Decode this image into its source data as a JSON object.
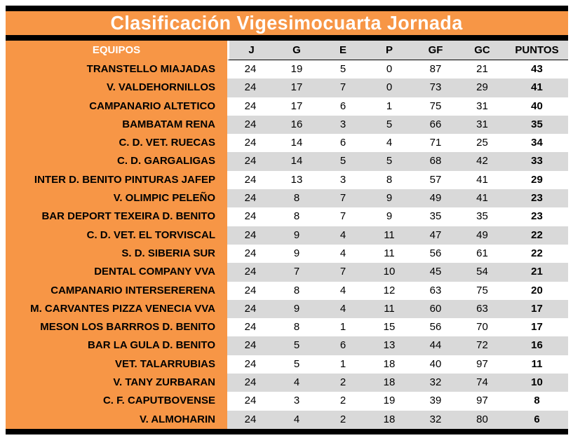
{
  "title": "Clasificación Vigesimocuarta Jornada",
  "table": {
    "team_header": "EQUIPOS",
    "columns": [
      "J",
      "G",
      "E",
      "P",
      "GF",
      "GC",
      "PUNTOS"
    ],
    "rows": [
      {
        "team": "TRANSTELLO MIAJADAS",
        "j": "24",
        "g": "19",
        "e": "5",
        "p": "0",
        "gf": "87",
        "gc": "21",
        "puntos": "43"
      },
      {
        "team": "V. VALDEHORNILLOS",
        "j": "24",
        "g": "17",
        "e": "7",
        "p": "0",
        "gf": "73",
        "gc": "29",
        "puntos": "41"
      },
      {
        "team": "CAMPANARIO ALTETICO",
        "j": "24",
        "g": "17",
        "e": "6",
        "p": "1",
        "gf": "75",
        "gc": "31",
        "puntos": "40"
      },
      {
        "team": "BAMBATAM RENA",
        "j": "24",
        "g": "16",
        "e": "3",
        "p": "5",
        "gf": "66",
        "gc": "31",
        "puntos": "35"
      },
      {
        "team": "C. D. VET. RUECAS",
        "j": "24",
        "g": "14",
        "e": "6",
        "p": "4",
        "gf": "71",
        "gc": "25",
        "puntos": "34"
      },
      {
        "team": "C. D. GARGALIGAS",
        "j": "24",
        "g": "14",
        "e": "5",
        "p": "5",
        "gf": "68",
        "gc": "42",
        "puntos": "33"
      },
      {
        "team": "INTER D. BENITO PINTURAS JAFEP",
        "j": "24",
        "g": "13",
        "e": "3",
        "p": "8",
        "gf": "57",
        "gc": "41",
        "puntos": "29"
      },
      {
        "team": "V. OLIMPIC PELEÑO",
        "j": "24",
        "g": "8",
        "e": "7",
        "p": "9",
        "gf": "49",
        "gc": "41",
        "puntos": "23"
      },
      {
        "team": "BAR DEPORT TEXEIRA D. BENITO",
        "j": "24",
        "g": "8",
        "e": "7",
        "p": "9",
        "gf": "35",
        "gc": "35",
        "puntos": "23"
      },
      {
        "team": "C. D. VET. EL TORVISCAL",
        "j": "24",
        "g": "9",
        "e": "4",
        "p": "11",
        "gf": "47",
        "gc": "49",
        "puntos": "22"
      },
      {
        "team": "S. D. SIBERIA SUR",
        "j": "24",
        "g": "9",
        "e": "4",
        "p": "11",
        "gf": "56",
        "gc": "61",
        "puntos": "22"
      },
      {
        "team": "DENTAL COMPANY VVA",
        "j": "24",
        "g": "7",
        "e": "7",
        "p": "10",
        "gf": "45",
        "gc": "54",
        "puntos": "21"
      },
      {
        "team": "CAMPANARIO INTERSERERENA",
        "j": "24",
        "g": "8",
        "e": "4",
        "p": "12",
        "gf": "63",
        "gc": "75",
        "puntos": "20"
      },
      {
        "team": "M. CARVANTES PIZZA VENECIA VVA",
        "j": "24",
        "g": "9",
        "e": "4",
        "p": "11",
        "gf": "60",
        "gc": "63",
        "puntos": "17"
      },
      {
        "team": "MESON LOS BARRROS D. BENITO",
        "j": "24",
        "g": "8",
        "e": "1",
        "p": "15",
        "gf": "56",
        "gc": "70",
        "puntos": "17"
      },
      {
        "team": "BAR LA GULA D. BENITO",
        "j": "24",
        "g": "5",
        "e": "6",
        "p": "13",
        "gf": "44",
        "gc": "72",
        "puntos": "16"
      },
      {
        "team": "VET. TALARRUBIAS",
        "j": "24",
        "g": "5",
        "e": "1",
        "p": "18",
        "gf": "40",
        "gc": "97",
        "puntos": "11"
      },
      {
        "team": "V. TANY ZURBARAN",
        "j": "24",
        "g": "4",
        "e": "2",
        "p": "18",
        "gf": "32",
        "gc": "74",
        "puntos": "10"
      },
      {
        "team": "C. F. CAPUTBOVENSE",
        "j": "24",
        "g": "3",
        "e": "2",
        "p": "19",
        "gf": "39",
        "gc": "97",
        "puntos": "8"
      },
      {
        "team": "V. ALMOHARIN",
        "j": "24",
        "g": "4",
        "e": "2",
        "p": "18",
        "gf": "32",
        "gc": "80",
        "puntos": "6"
      }
    ]
  },
  "colors": {
    "accent_orange": "#F79646",
    "alt_row_gray": "#D9D9D9",
    "bar_black": "#000000",
    "row_white": "#FFFFFF",
    "title_text": "#FFFFFF"
  }
}
